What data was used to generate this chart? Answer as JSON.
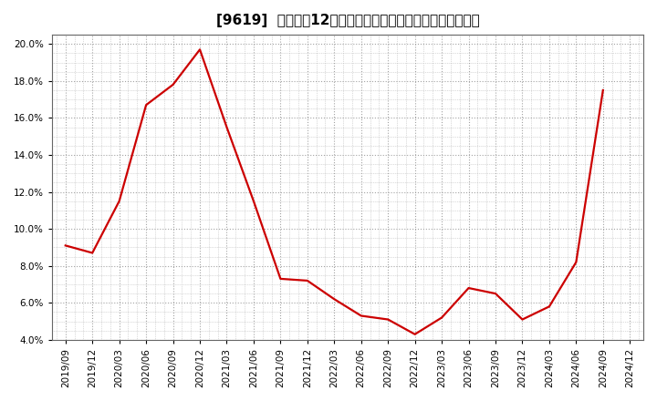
{
  "title": "[9619]  売上高の12か月移動合計の対前年同期増減率の推移",
  "line_color": "#cc0000",
  "bg_color": "#ffffff",
  "plot_bg_color": "#ffffff",
  "grid_color": "#999999",
  "ylim": [
    0.04,
    0.205
  ],
  "yticks": [
    0.04,
    0.06,
    0.08,
    0.1,
    0.12,
    0.14,
    0.16,
    0.18,
    0.2
  ],
  "dates": [
    "2019/09",
    "2019/12",
    "2020/03",
    "2020/06",
    "2020/09",
    "2020/12",
    "2021/03",
    "2021/06",
    "2021/09",
    "2021/12",
    "2022/03",
    "2022/06",
    "2022/09",
    "2022/12",
    "2023/03",
    "2023/06",
    "2023/09",
    "2023/12",
    "2024/03",
    "2024/06",
    "2024/09",
    "2024/12"
  ],
  "values": [
    0.091,
    0.087,
    0.115,
    0.167,
    0.178,
    0.197,
    0.155,
    0.115,
    0.073,
    0.072,
    0.062,
    0.053,
    0.051,
    0.043,
    0.052,
    0.068,
    0.065,
    0.051,
    0.058,
    0.082,
    0.175,
    null
  ],
  "title_fontsize": 11,
  "tick_fontsize": 7.5,
  "linewidth": 1.6
}
